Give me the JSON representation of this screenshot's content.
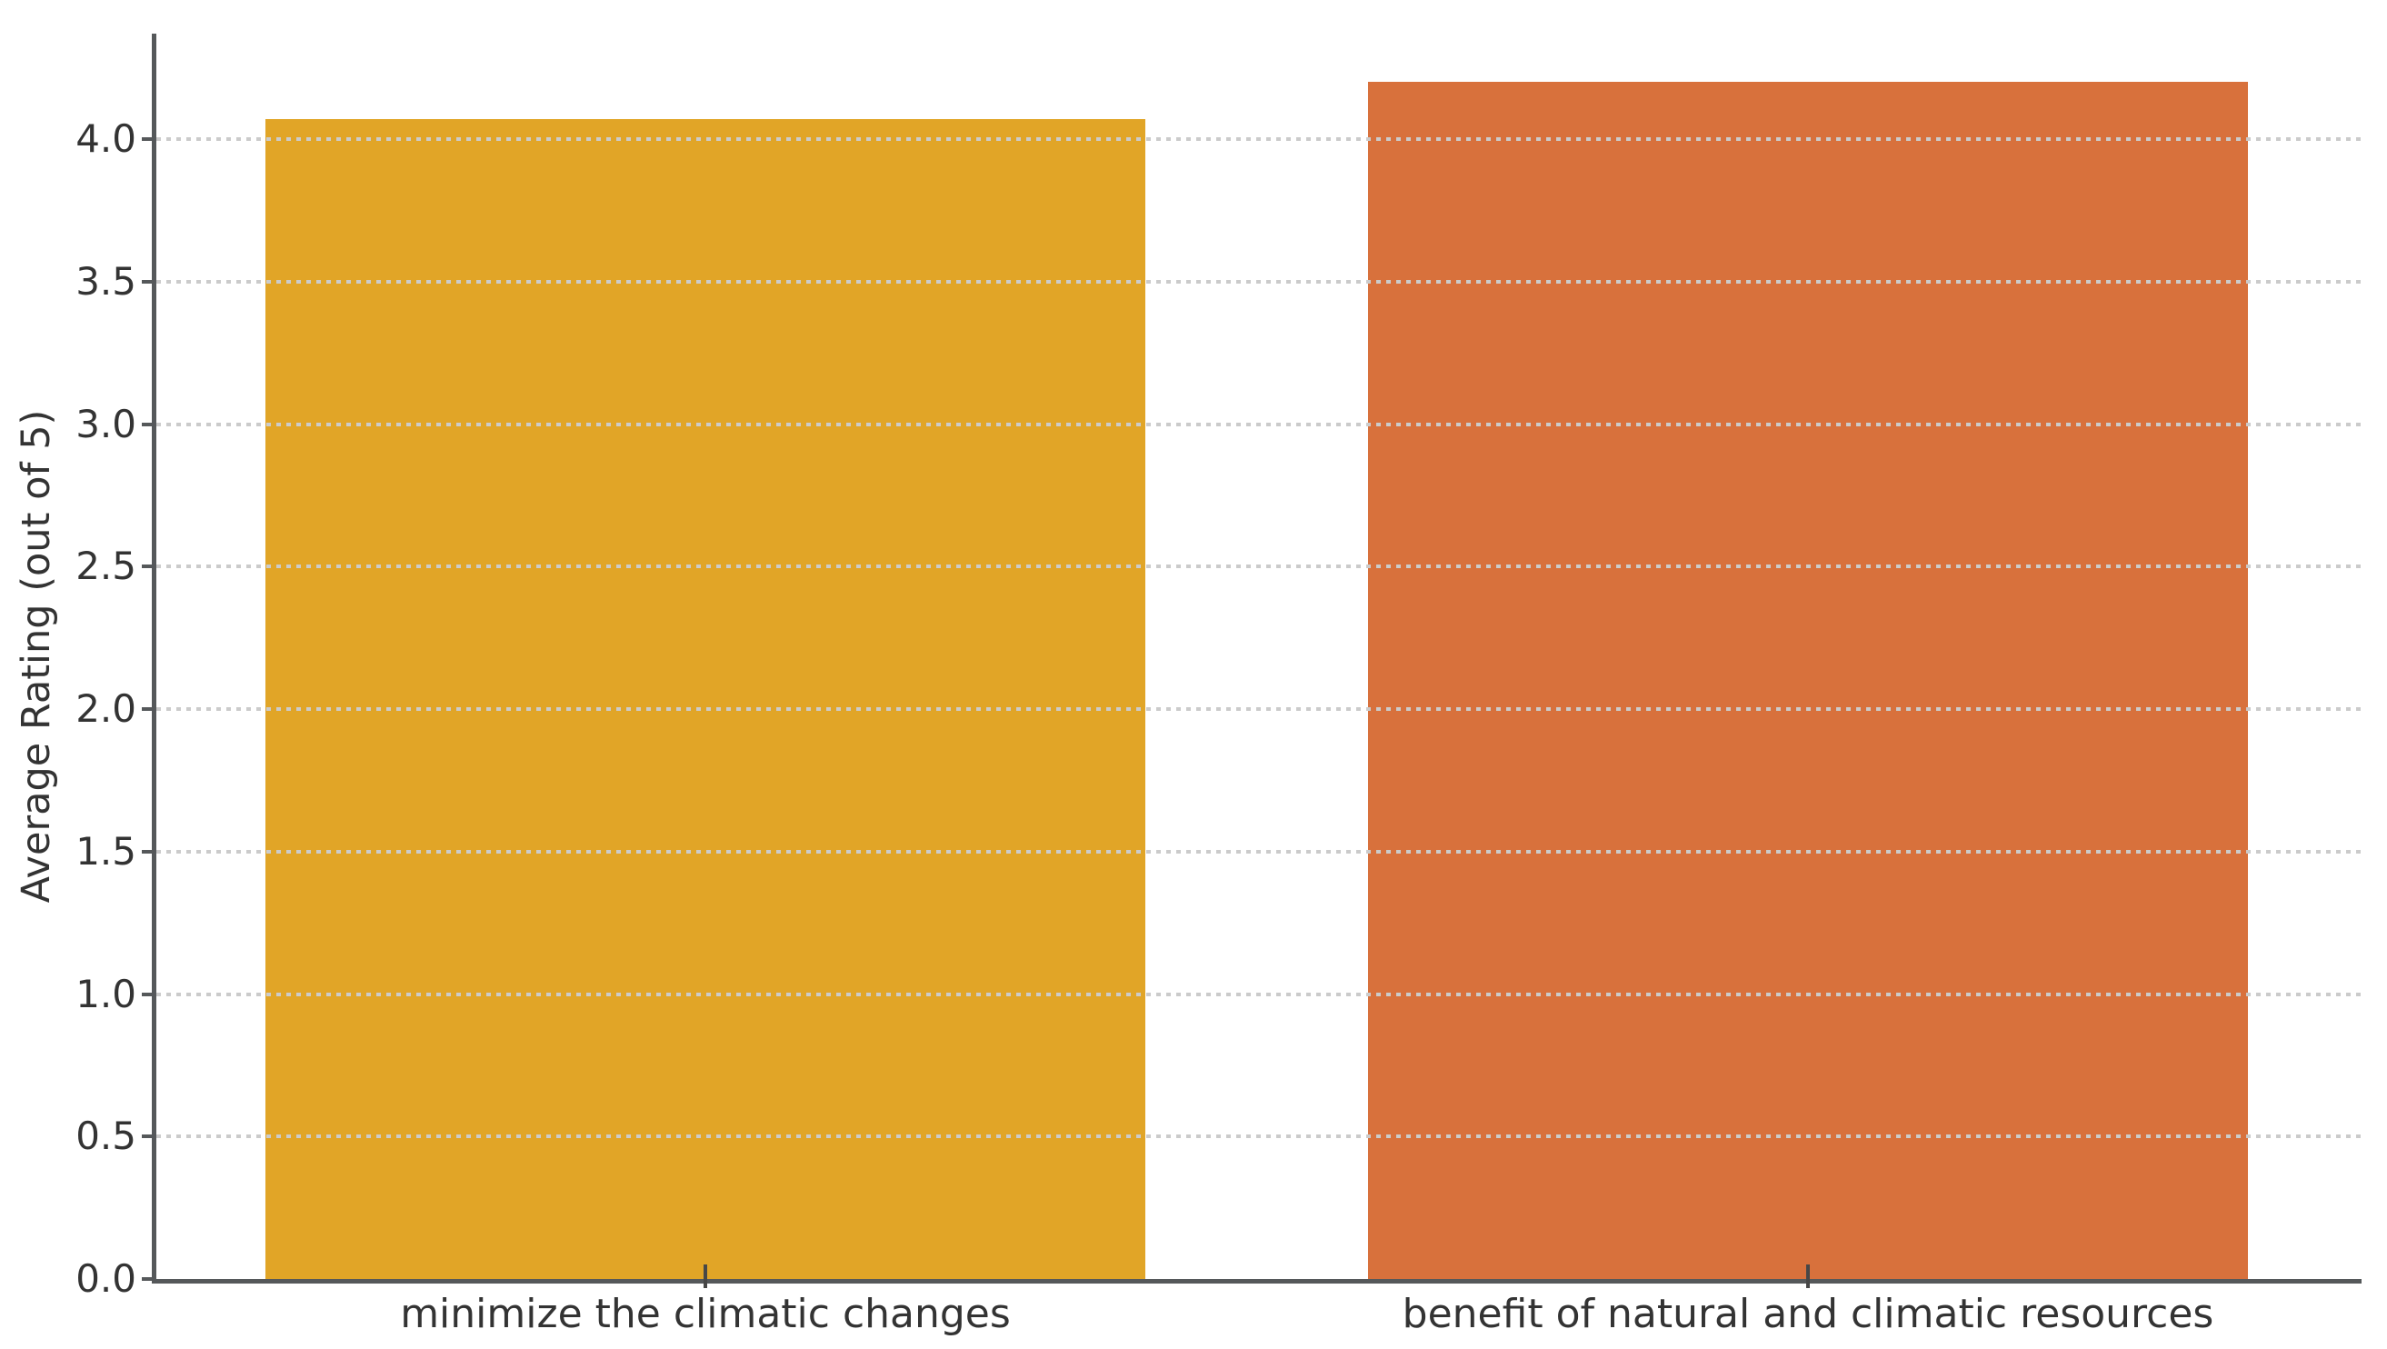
{
  "chart_data": {
    "type": "bar",
    "title": "",
    "xlabel": "",
    "ylabel": "Average Rating (out of 5)",
    "categories": [
      "minimize the climatic changes",
      "benefit of natural and climatic resources"
    ],
    "values": [
      4.07,
      4.2
    ],
    "bar_colors": [
      "#E1A527",
      "#D8713C"
    ],
    "ylim": [
      0,
      4.37
    ],
    "yticks": [
      "0.0",
      "0.5",
      "1.0",
      "1.5",
      "2.0",
      "2.5",
      "3.0",
      "3.5",
      "4.0"
    ],
    "grid": "horizontal dotted gridlines at every y tick, drawn over the bars",
    "legend_position": "none"
  },
  "colors": {
    "background": "#ffffff",
    "axis": "#55585a",
    "tick_text": "#333333",
    "gridline": "#cbcbcb"
  }
}
